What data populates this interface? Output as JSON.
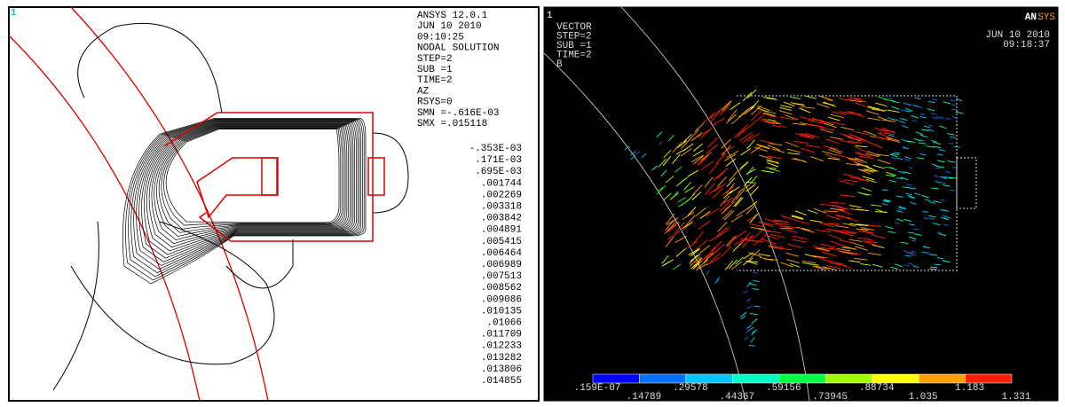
{
  "left_panel": {
    "window_number": "1",
    "header": [
      "ANSYS 12.0.1",
      "JUN 10 2010",
      "09:10:25",
      "NODAL SOLUTION",
      "STEP=2",
      "SUB =1",
      "TIME=2",
      "AZ",
      "RSYS=0",
      "SMN =-.616E-03",
      "SMX =.015118"
    ],
    "contour_levels": [
      "-.353E-03",
      ".171E-03",
      ".695E-03",
      ".001744",
      ".002269",
      ".003318",
      ".003842",
      ".004891",
      ".005415",
      ".006464",
      ".006989",
      ".007513",
      ".008562",
      ".009086",
      ".010135",
      ".01066",
      ".011709",
      ".012233",
      ".013282",
      ".013806",
      ".014855"
    ]
  },
  "right_panel": {
    "window_number": "1",
    "info": [
      "VECTOR",
      "STEP=2",
      "SUB =1",
      "TIME=2",
      "B"
    ],
    "logo": [
      "AN",
      "SYS"
    ],
    "date": "JUN 10 2010",
    "time": "09:18:37",
    "legend_labels": [
      ".159E-07",
      ".14789",
      ".29578",
      ".44367",
      ".59156",
      ".73945",
      ".88734",
      "1.035",
      "1.183",
      "1.331"
    ]
  }
}
